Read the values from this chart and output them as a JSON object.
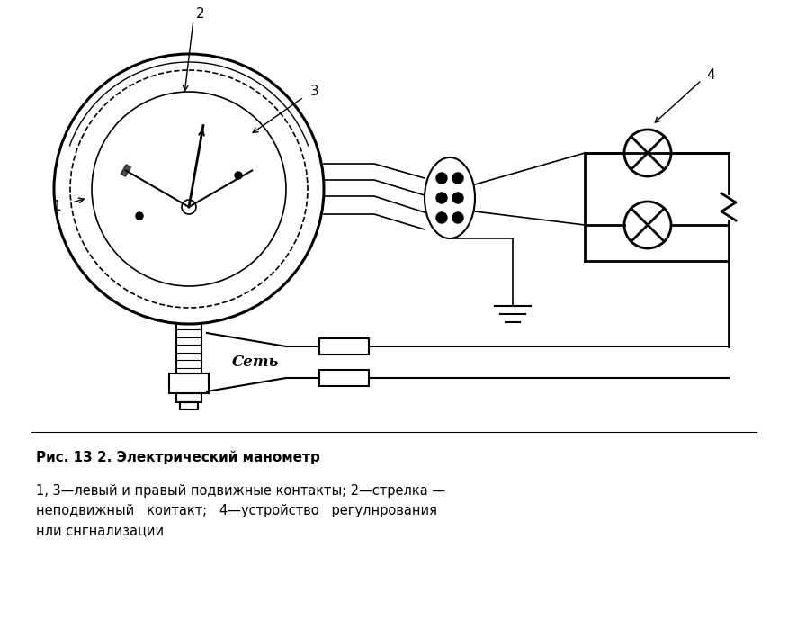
{
  "bg_color": "#ffffff",
  "line_color": "#000000",
  "fig_width": 8.76,
  "fig_height": 6.89,
  "caption_title": "Рис. 13 2. Электрический манометр",
  "caption_body": "1, 3—левый и правый подвижные контакты; 2—стрелка —\nнеподвижный   коитакт;   4—устройство   регулнрования\nнли снгнализации"
}
